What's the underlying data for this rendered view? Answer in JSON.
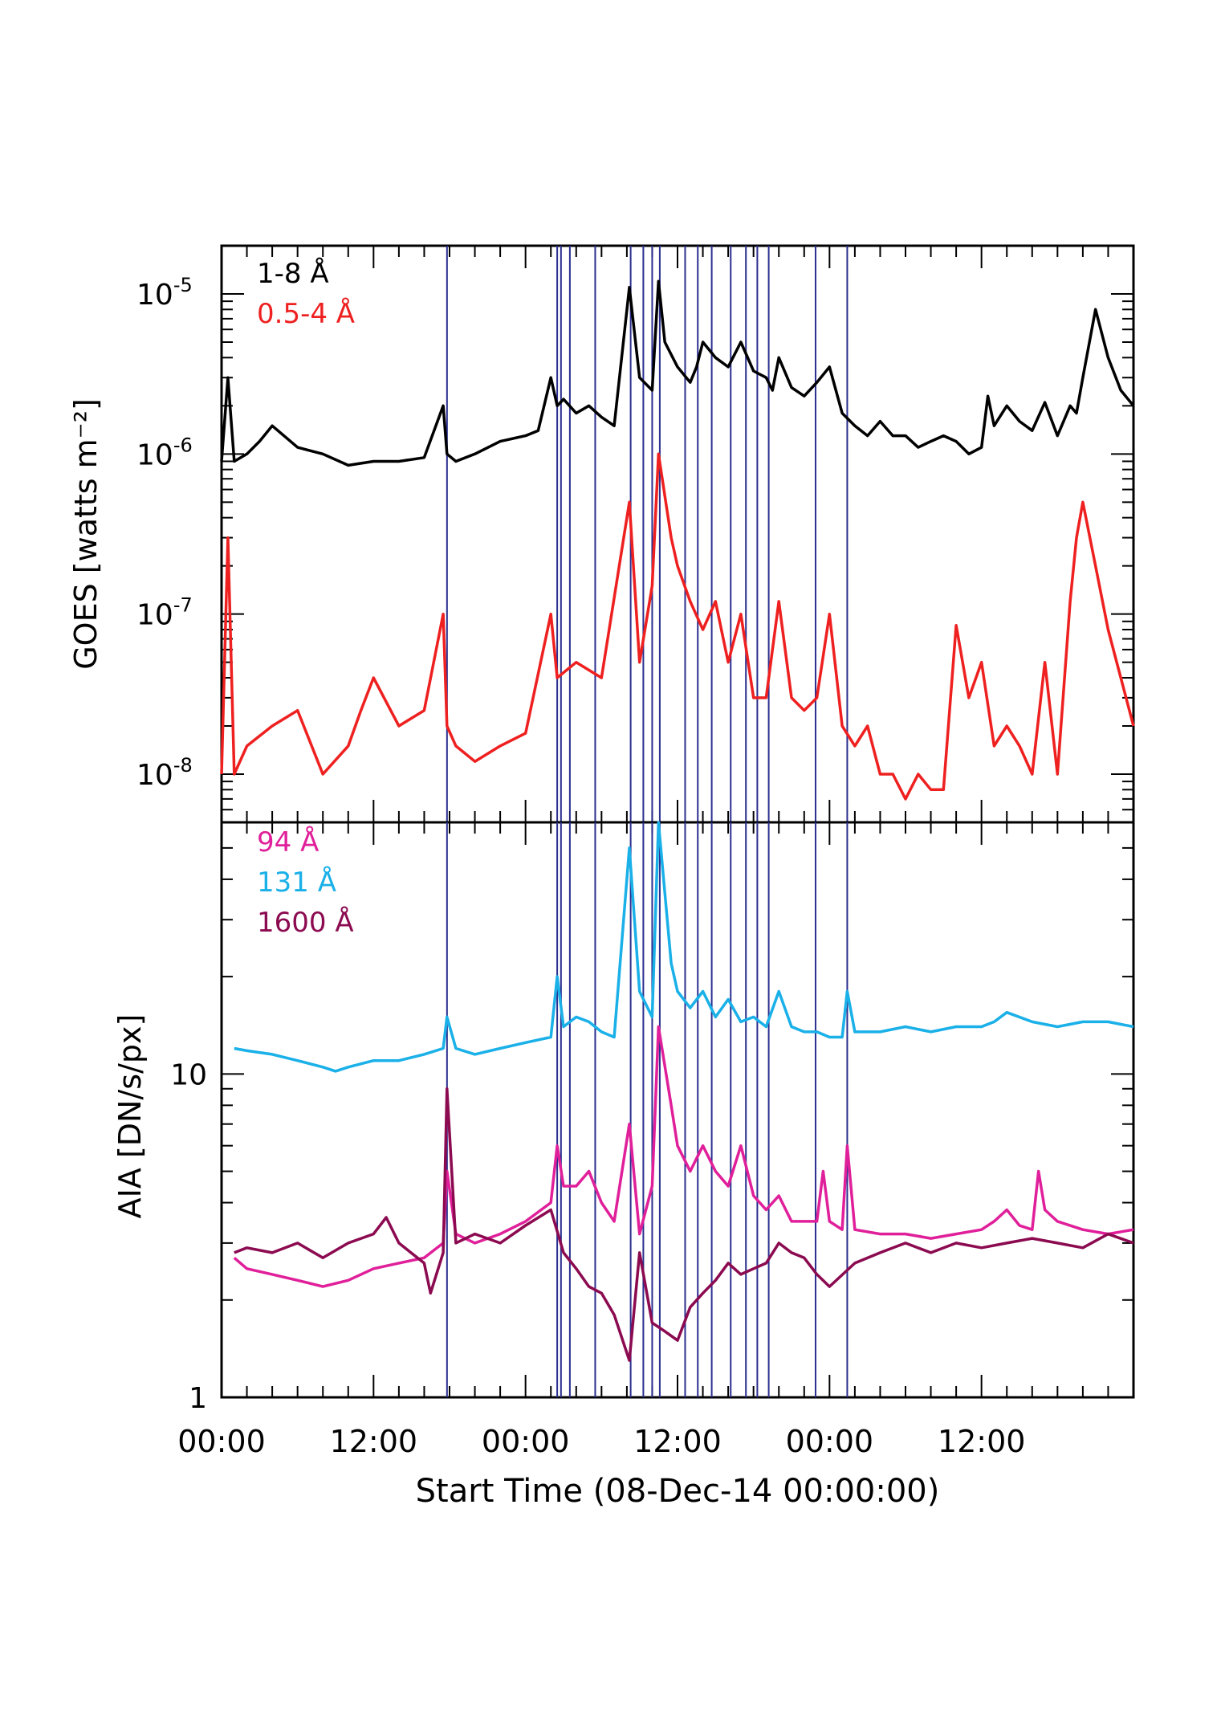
{
  "chart_data": [
    {
      "type": "line",
      "panel": "top",
      "ylabel": "GOES [watts m⁻²]",
      "yscale": "log",
      "ylim": [
        5e-09,
        2e-05
      ],
      "ytick_labels": [
        {
          "base": "10",
          "exp": "-5",
          "value": 1e-05
        },
        {
          "base": "10",
          "exp": "-6",
          "value": 1e-06
        },
        {
          "base": "10",
          "exp": "-7",
          "value": 1e-07
        },
        {
          "base": "10",
          "exp": "-8",
          "value": 1e-08
        }
      ],
      "series": [
        {
          "name": "1-8 Å",
          "color": "#000000",
          "x": [
            0,
            0.5,
            1,
            2,
            3,
            4,
            6,
            8,
            10,
            12,
            14,
            16,
            17.5,
            17.8,
            18.5,
            20,
            22,
            24,
            25,
            26,
            26.5,
            27,
            28,
            29,
            30,
            31,
            32.2,
            33,
            34,
            34.5,
            35,
            36,
            37,
            37.5,
            38,
            39,
            40,
            41,
            42,
            43,
            43.5,
            44,
            45,
            46,
            47,
            48,
            49,
            50,
            51,
            52,
            53,
            54,
            55,
            56,
            57,
            58,
            59,
            60,
            60.5,
            61,
            62,
            63,
            64,
            65,
            66,
            67,
            67.5,
            68,
            69,
            70,
            71,
            72
          ],
          "y": [
            9e-07,
            3e-06,
            9e-07,
            1e-06,
            1.2e-06,
            1.5e-06,
            1.1e-06,
            1e-06,
            8.5e-07,
            9e-07,
            9e-07,
            9.5e-07,
            2e-06,
            1e-06,
            9e-07,
            1e-06,
            1.2e-06,
            1.3e-06,
            1.4e-06,
            3e-06,
            2e-06,
            2.2e-06,
            1.8e-06,
            2e-06,
            1.7e-06,
            1.5e-06,
            1.1e-05,
            3e-06,
            2.5e-06,
            1.2e-05,
            5e-06,
            3.5e-06,
            2.8e-06,
            3.5e-06,
            5e-06,
            4e-06,
            3.5e-06,
            5e-06,
            3.3e-06,
            3e-06,
            2.5e-06,
            4e-06,
            2.6e-06,
            2.3e-06,
            2.8e-06,
            3.5e-06,
            1.8e-06,
            1.5e-06,
            1.3e-06,
            1.6e-06,
            1.3e-06,
            1.3e-06,
            1.1e-06,
            1.2e-06,
            1.3e-06,
            1.2e-06,
            1e-06,
            1.1e-06,
            2.3e-06,
            1.5e-06,
            2e-06,
            1.6e-06,
            1.4e-06,
            2.1e-06,
            1.3e-06,
            2e-06,
            1.8e-06,
            3e-06,
            8e-06,
            4e-06,
            2.5e-06,
            2e-06
          ]
        },
        {
          "name": "0.5-4 Å",
          "color": "#ee2020",
          "x": [
            0,
            0.5,
            1,
            2,
            4,
            6,
            8,
            10,
            11,
            12,
            14,
            16,
            17.5,
            17.8,
            18.5,
            20,
            22,
            24,
            26,
            26.5,
            28,
            30,
            32.2,
            33,
            34,
            34.5,
            35.5,
            36,
            37,
            38,
            39,
            40,
            41,
            42,
            43,
            44,
            45,
            46,
            47,
            48,
            49,
            50,
            51,
            52,
            53,
            54,
            55,
            56,
            57,
            58,
            59,
            60,
            61,
            62,
            63,
            64,
            65,
            66,
            67,
            67.5,
            68,
            69,
            70,
            71,
            72
          ],
          "y": [
            1e-08,
            3e-07,
            1e-08,
            1.5e-08,
            2e-08,
            2.5e-08,
            1e-08,
            1.5e-08,
            2.5e-08,
            4e-08,
            2e-08,
            2.5e-08,
            1e-07,
            2e-08,
            1.5e-08,
            1.2e-08,
            1.5e-08,
            1.8e-08,
            1e-07,
            4e-08,
            5e-08,
            4e-08,
            5e-07,
            5e-08,
            1.5e-07,
            1e-06,
            3e-07,
            2e-07,
            1.2e-07,
            8e-08,
            1.2e-07,
            5e-08,
            1e-07,
            3e-08,
            3e-08,
            1.2e-07,
            3e-08,
            2.5e-08,
            3e-08,
            1e-07,
            2e-08,
            1.5e-08,
            2e-08,
            1e-08,
            1e-08,
            7e-09,
            1e-08,
            8e-09,
            8e-09,
            8.5e-08,
            3e-08,
            5e-08,
            1.5e-08,
            2e-08,
            1.5e-08,
            1e-08,
            5e-08,
            1e-08,
            1.2e-07,
            3e-07,
            5e-07,
            2e-07,
            8e-08,
            4e-08,
            2e-08
          ]
        }
      ],
      "vlines_hours": [
        17.8,
        26.5,
        26.8,
        27.5,
        29.5,
        32.3,
        33.3,
        34,
        34.6,
        36.6,
        37.6,
        38.7,
        40.2,
        41.4,
        42.3,
        43.2,
        46.9,
        49.4
      ]
    },
    {
      "type": "line",
      "panel": "bottom",
      "ylabel": "AIA [DN/s/px]",
      "xlabel": "Start Time (08-Dec-14 00:00:00)",
      "yscale": "log",
      "ylim": [
        1,
        60
      ],
      "ytick_labels": [
        {
          "label": "10",
          "value": 10
        },
        {
          "label": "1",
          "value": 1
        }
      ],
      "xlim": [
        0,
        72
      ],
      "xtick_labels": [
        {
          "label": "00:00",
          "value": 0
        },
        {
          "label": "12:00",
          "value": 12
        },
        {
          "label": "00:00",
          "value": 24
        },
        {
          "label": "12:00",
          "value": 36
        },
        {
          "label": "00:00",
          "value": 48
        },
        {
          "label": "12:00",
          "value": 60
        }
      ],
      "series": [
        {
          "name": "94 Å",
          "color": "#e0209a",
          "x": [
            1,
            2,
            4,
            6,
            8,
            10,
            12,
            14,
            16,
            17.5,
            17.8,
            18.5,
            20,
            22,
            24,
            26,
            26.5,
            27,
            28,
            29,
            30,
            31,
            32.2,
            33,
            34,
            34.5,
            35.5,
            36,
            37,
            38,
            39,
            40,
            41,
            42,
            43,
            44,
            45,
            46,
            47,
            47.5,
            48,
            49,
            49.4,
            50,
            52,
            54,
            56,
            58,
            60,
            61,
            62,
            63,
            64,
            64.5,
            65,
            66,
            68,
            70,
            72
          ],
          "y": [
            2.7,
            2.5,
            2.4,
            2.3,
            2.2,
            2.3,
            2.5,
            2.6,
            2.7,
            3,
            5,
            3.2,
            3,
            3.2,
            3.5,
            4,
            6,
            4.5,
            4.5,
            5,
            4,
            3.5,
            7,
            3.2,
            4.5,
            14,
            8,
            6,
            5,
            6,
            5,
            4.5,
            6,
            4.2,
            3.8,
            4.2,
            3.5,
            3.5,
            3.5,
            5,
            3.5,
            3.3,
            6,
            3.3,
            3.2,
            3.2,
            3.1,
            3.2,
            3.3,
            3.5,
            3.8,
            3.4,
            3.3,
            5,
            3.8,
            3.5,
            3.3,
            3.2,
            3.3
          ]
        },
        {
          "name": "131 Å",
          "color": "#1ab0e8",
          "x": [
            1,
            2,
            4,
            6,
            8,
            9,
            10,
            12,
            14,
            16,
            17.5,
            17.8,
            18.5,
            20,
            22,
            24,
            26,
            26.5,
            27,
            28,
            29,
            30,
            31,
            32.2,
            33,
            34,
            34.5,
            35.5,
            36,
            37,
            38,
            39,
            40,
            41,
            42,
            43,
            44,
            45,
            46,
            47,
            48,
            49,
            49.4,
            50,
            52,
            54,
            56,
            58,
            60,
            61,
            62,
            64,
            66,
            68,
            70,
            72
          ],
          "y": [
            12,
            11.8,
            11.5,
            11,
            10.5,
            10.2,
            10.5,
            11,
            11,
            11.5,
            12,
            15,
            12,
            11.5,
            12,
            12.5,
            13,
            20,
            14,
            15,
            14.5,
            13.5,
            13,
            50,
            18,
            15,
            60,
            22,
            18,
            16,
            18,
            15,
            17,
            14.5,
            15,
            14,
            18,
            14,
            13.5,
            13.5,
            13,
            13,
            18,
            13.5,
            13.5,
            14,
            13.5,
            14,
            14,
            14.5,
            15.5,
            14.5,
            14,
            14.5,
            14.5,
            14
          ]
        },
        {
          "name": "1600 Å",
          "color": "#8b0a50",
          "x": [
            1,
            2,
            4,
            6,
            8,
            10,
            12,
            13,
            14,
            16,
            16.5,
            17.5,
            17.8,
            18.5,
            20,
            22,
            24,
            26,
            27,
            28,
            29,
            30,
            31,
            32.2,
            33,
            34,
            35,
            36,
            37,
            38,
            39,
            40,
            41,
            42,
            43,
            44,
            45,
            46,
            47,
            48,
            50,
            52,
            54,
            56,
            58,
            60,
            62,
            64,
            66,
            68,
            70,
            72
          ],
          "y": [
            2.8,
            2.9,
            2.8,
            3,
            2.7,
            3,
            3.2,
            3.6,
            3,
            2.6,
            2.1,
            2.8,
            9,
            3,
            3.2,
            3,
            3.4,
            3.8,
            2.8,
            2.5,
            2.2,
            2.1,
            1.8,
            1.3,
            2.8,
            1.7,
            1.6,
            1.5,
            1.9,
            2.1,
            2.3,
            2.6,
            2.4,
            2.5,
            2.6,
            3,
            2.8,
            2.7,
            2.4,
            2.2,
            2.6,
            2.8,
            3,
            2.8,
            3,
            2.9,
            3,
            3.1,
            3,
            2.9,
            3.2,
            3
          ]
        }
      ],
      "vlines_hours": [
        17.8,
        26.5,
        26.8,
        27.5,
        29.5,
        32.3,
        33.3,
        34,
        34.6,
        36.6,
        37.6,
        38.7,
        40.2,
        41.4,
        42.3,
        43.2,
        46.9,
        49.4
      ]
    }
  ],
  "colors": {
    "vline": "#2b2f8f",
    "axis": "#000000"
  }
}
